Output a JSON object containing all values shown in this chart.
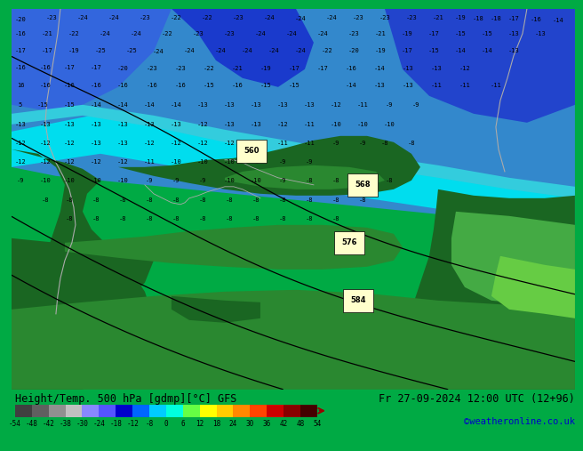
{
  "title_left": "Height/Temp. 500 hPa [gdmp][°C] GFS",
  "title_right": "Fr 27-09-2024 12:00 UTC (12+96)",
  "credit": "©weatheronline.co.uk",
  "bg_color": "#00aa44",
  "colorbar_left_colors": [
    "#404040",
    "#707070",
    "#a0a0a0",
    "#d0d0d0"
  ],
  "colorbar_right_colors": [
    "#8080ff",
    "#4444ff",
    "#0000cc",
    "#0088ff",
    "#00ccff",
    "#00ffcc",
    "#88ff44",
    "#ffff00",
    "#ffcc00",
    "#ff8800",
    "#ff4400",
    "#cc0000",
    "#880000",
    "#440000"
  ],
  "cb_labels": [
    "-54",
    "-48",
    "-42",
    "-38",
    "-30",
    "-24",
    "-18",
    "-12",
    "-8",
    "0",
    "6",
    "12",
    "18",
    "24",
    "30",
    "36",
    "42",
    "48",
    "54"
  ],
  "map_regions": {
    "deep_blue": "#1133bb",
    "medium_blue": "#3366dd",
    "light_blue": "#44aaee",
    "cyan": "#22ddee",
    "dark_green": "#1a6622",
    "medium_green": "#2a8830",
    "light_green": "#44aa44",
    "bright_green": "#66cc44"
  },
  "contour_color": "#000000",
  "text_color": "#000000",
  "height_label_bg": "#ffffaa"
}
